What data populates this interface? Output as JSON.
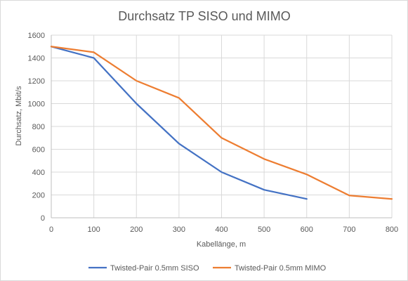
{
  "chart_data": {
    "type": "line",
    "title": "Durchsatz TP SISO und MIMO",
    "xlabel": "Kabellänge, m",
    "ylabel": "Durchsatz, Mbit/s",
    "xlim": [
      0,
      800
    ],
    "ylim": [
      0,
      1600
    ],
    "x_ticks": [
      0,
      100,
      200,
      300,
      400,
      500,
      600,
      700,
      800
    ],
    "y_ticks": [
      0,
      200,
      400,
      600,
      800,
      1000,
      1200,
      1400,
      1600
    ],
    "grid": true,
    "legend_position": "bottom",
    "series": [
      {
        "name": "Twisted-Pair 0.5mm SISO",
        "color": "#4472c4",
        "x": [
          0,
          100,
          200,
          300,
          400,
          500,
          600
        ],
        "y": [
          1500,
          1400,
          1000,
          650,
          400,
          245,
          165
        ]
      },
      {
        "name": "Twisted-Pair 0.5mm MIMO",
        "color": "#ed7d31",
        "x": [
          0,
          100,
          200,
          300,
          400,
          500,
          600,
          700,
          800
        ],
        "y": [
          1500,
          1450,
          1200,
          1050,
          700,
          515,
          380,
          195,
          165
        ]
      }
    ]
  }
}
